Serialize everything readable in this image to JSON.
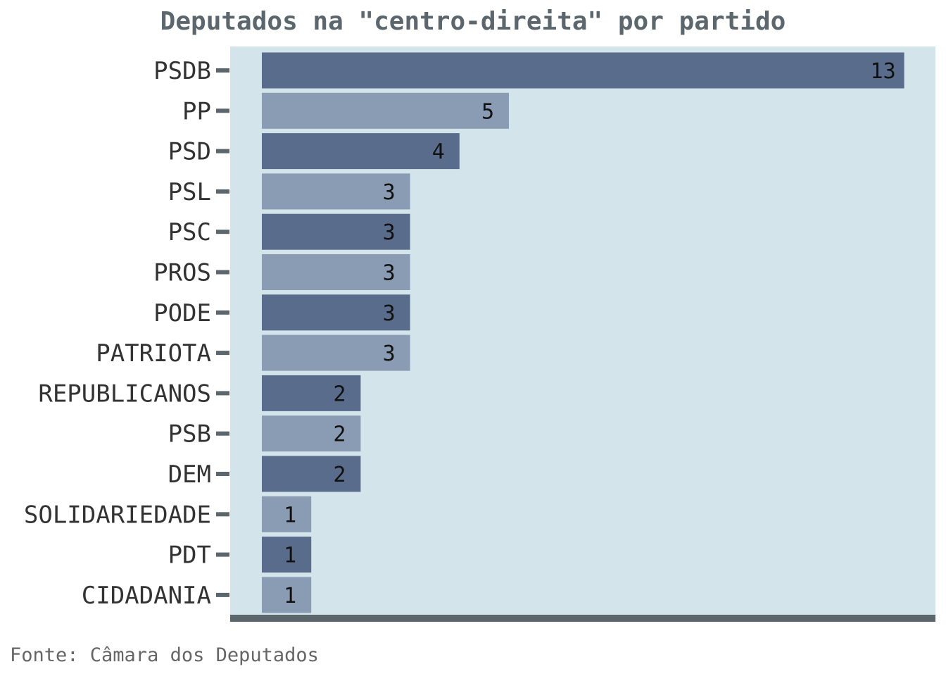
{
  "chart_data": {
    "type": "bar",
    "orientation": "horizontal",
    "title": "Deputados na \"centro-direita\" por partido",
    "categories": [
      "PSDB",
      "PP",
      "PSD",
      "PSL",
      "PSC",
      "PROS",
      "PODE",
      "PATRIOTA",
      "REPUBLICANOS",
      "PSB",
      "DEM",
      "SOLIDARIEDADE",
      "PDT",
      "CIDADANIA"
    ],
    "values": [
      13,
      5,
      4,
      3,
      3,
      3,
      3,
      3,
      2,
      2,
      2,
      1,
      1,
      1
    ],
    "xlim": [
      0,
      13
    ],
    "grid": false,
    "legend": "none",
    "data_labels": true,
    "caption": "Fonte: Câmara dos Deputados",
    "colors": {
      "bar_dark": "#596c8c",
      "bar_light": "#8a9bb4",
      "plot_background": "#d4e4eb",
      "axis": "#5b666d",
      "title": "#5b666d"
    }
  }
}
